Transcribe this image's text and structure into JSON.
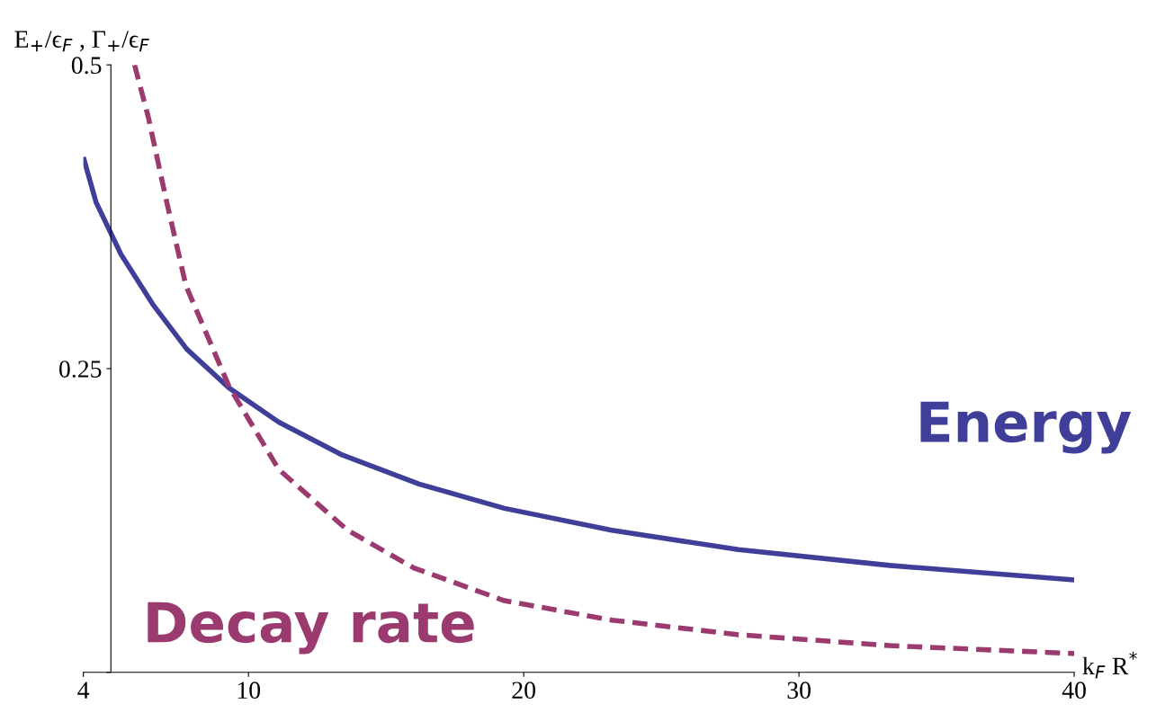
{
  "chart_data": {
    "type": "line",
    "xlabel": "k$_{F}$ R$^{*}$",
    "ylabel": "E$_{+}$/ϵ$_{F}$ , Γ$_{+}$/ϵ$_{F}$",
    "xlim": [
      4,
      40
    ],
    "ylim": [
      0,
      0.5
    ],
    "xticks": [
      4,
      10,
      20,
      30,
      40
    ],
    "yticks": [
      {
        "value": 0,
        "label": null
      },
      0.25,
      0.5
    ],
    "grid": false,
    "legend": false,
    "series": [
      {
        "name": "Energy",
        "color": "#3f3f9a",
        "line_style": "solid",
        "x": [
          4,
          4.46,
          5.37,
          6.52,
          7.76,
          9.3,
          11.1,
          13.4,
          16.2,
          19.3,
          23.2,
          27.8,
          33.3,
          40
        ],
        "values": [
          0.424,
          0.387,
          0.344,
          0.303,
          0.266,
          0.234,
          0.206,
          0.179,
          0.155,
          0.135,
          0.117,
          0.101,
          0.088,
          0.076
        ]
      },
      {
        "name": "Decay rate",
        "color": "#9b3a6e",
        "line_style": "dashed",
        "x": [
          5.86,
          6.36,
          7.0,
          7.73,
          9.3,
          11.1,
          13.6,
          16.0,
          19.3,
          23.2,
          27.8,
          33.3,
          40
        ],
        "values": [
          0.5,
          0.457,
          0.39,
          0.318,
          0.235,
          0.167,
          0.117,
          0.086,
          0.059,
          0.043,
          0.031,
          0.022,
          0.0155
        ]
      }
    ]
  }
}
